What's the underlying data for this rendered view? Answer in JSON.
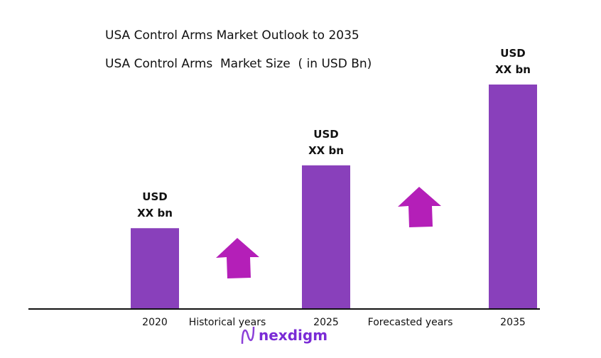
{
  "chart_data": {
    "type": "bar",
    "title": "USA Control Arms Market Outlook to 2035",
    "subtitle": "USA Control Arms  Market Size  ( in USD Bn)",
    "categories": [
      "2020",
      "2025",
      "2035"
    ],
    "values_relative": [
      36,
      64,
      100
    ],
    "data_labels": [
      [
        "USD",
        "XX bn"
      ],
      [
        "USD",
        "XX bn"
      ],
      [
        "USD",
        "XX bn"
      ]
    ],
    "annotations": [
      "Historical years",
      "Forecasted years"
    ],
    "grid": false,
    "colors": {
      "bar": "#8940bb",
      "arrow": "#b41fb8"
    }
  },
  "logo": {
    "text": "nexdigm"
  }
}
